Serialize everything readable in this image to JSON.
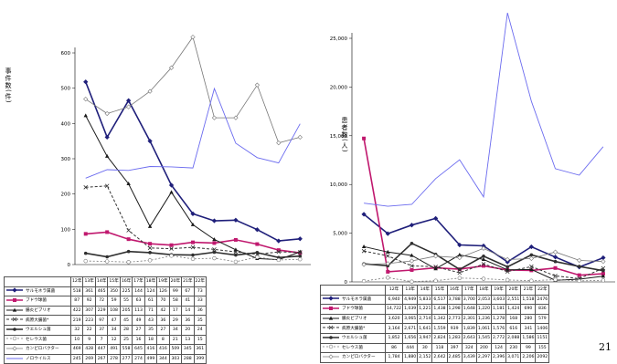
{
  "page": {
    "number": "21"
  },
  "colors": {
    "salmonella": "#1f1f7a",
    "grape": "#c0186e",
    "vibrio": "#1a1a1a",
    "ecoli": "#333333",
    "welchii": "#2f2f2f",
    "cereus": "#777777",
    "campylobacter": "#777777",
    "norovirus": "#6b6bef"
  },
  "chart_data": [
    {
      "type": "line",
      "ylabel": "事件数(件)",
      "ylim": [
        0,
        600
      ],
      "yticks": [
        0,
        100,
        200,
        300,
        400,
        500,
        600
      ],
      "categories": [
        "12年",
        "13年",
        "14年",
        "15年",
        "16年",
        "17年",
        "18年",
        "19年",
        "20年",
        "21年",
        "22年"
      ],
      "series": [
        {
          "name": "サルモネラ属菌",
          "key": "salmonella",
          "values": [
            518,
            361,
            465,
            350,
            225,
            144,
            124,
            126,
            99,
            67,
            73
          ]
        },
        {
          "name": "ブドウ球菌",
          "key": "grape",
          "values": [
            87,
            92,
            72,
            59,
            55,
            63,
            61,
            70,
            58,
            41,
            33
          ]
        },
        {
          "name": "腸炎ビブリオ",
          "key": "vibrio",
          "values": [
            422,
            307,
            229,
            108,
            205,
            113,
            71,
            42,
            17,
            14,
            36
          ]
        },
        {
          "name": "病原大腸菌*",
          "key": "ecoli",
          "values": [
            219,
            223,
            97,
            47,
            45,
            49,
            43,
            36,
            29,
            36,
            35
          ]
        },
        {
          "name": "ウエルシュ菌",
          "key": "welchii",
          "values": [
            32,
            22,
            37,
            34,
            28,
            27,
            35,
            27,
            34,
            20,
            24
          ]
        },
        {
          "name": "セレウス菌",
          "key": "cereus",
          "values": [
            10,
            9,
            7,
            12,
            25,
            16,
            18,
            8,
            21,
            13,
            15
          ]
        },
        {
          "name": "カンピロバクター",
          "key": "campylobacter",
          "values": [
            469,
            428,
            447,
            491,
            558,
            645,
            416,
            416,
            509,
            345,
            361
          ]
        },
        {
          "name": "ノロウイルス",
          "key": "norovirus",
          "values": [
            245,
            269,
            267,
            278,
            277,
            274,
            499,
            344,
            303,
            288,
            399
          ]
        }
      ]
    },
    {
      "type": "line",
      "ylabel": "患者数(人)",
      "ylim": [
        0,
        25000
      ],
      "yticks": [
        0,
        5000,
        10000,
        15000,
        20000,
        25000
      ],
      "ytick_labels": [
        "0",
        "5,000",
        "10,000",
        "15,000",
        "20,000",
        "25,000"
      ],
      "categories": [
        "12年",
        "13年",
        "14年",
        "15年",
        "16年",
        "17年",
        "18年",
        "19年",
        "20年",
        "21年",
        "22年"
      ],
      "series": [
        {
          "name": "サルモネラ属菌",
          "key": "salmonella",
          "values": [
            6940,
            4949,
            5833,
            6517,
            3788,
            3700,
            2053,
            3603,
            2551,
            1518,
            2476
          ],
          "labels": [
            "6,940",
            "4,949",
            "5,833",
            "6,517",
            "3,788",
            "3,700",
            "2,053",
            "3,603",
            "2,551",
            "1,518",
            "2476"
          ]
        },
        {
          "name": "ブドウ球菌",
          "key": "grape",
          "values": [
            14722,
            1039,
            1221,
            1438,
            1298,
            1648,
            1220,
            1181,
            1424,
            690,
            836
          ],
          "labels": [
            "14,722",
            "1,039",
            "1,221",
            "1,438",
            "1,298",
            "1,648",
            "1,220",
            "1,181",
            "1,424",
            "690",
            "836"
          ]
        },
        {
          "name": "腸炎ビブリオ",
          "key": "vibrio",
          "values": [
            3620,
            3065,
            2714,
            1342,
            2773,
            2301,
            1236,
            1278,
            168,
            280,
            579
          ],
          "labels": [
            "3,620",
            "3,065",
            "2,714",
            "1,342",
            "2,773",
            "2,301",
            "1,236",
            "1,278",
            "168",
            "280",
            "579"
          ]
        },
        {
          "name": "病原大腸菌*",
          "key": "ecoli",
          "values": [
            3164,
            2671,
            1641,
            1559,
            939,
            1839,
            1061,
            1576,
            616,
            341,
            1406
          ],
          "labels": [
            "3,164",
            "2,671",
            "1,641",
            "1,559",
            "939",
            "1,839",
            "1,061",
            "1,576",
            "616",
            "341",
            "1406"
          ]
        },
        {
          "name": "ウエルシュ菌",
          "key": "welchii",
          "values": [
            1852,
            1656,
            3947,
            2824,
            1283,
            2643,
            1545,
            2772,
            2088,
            1586,
            1151
          ],
          "labels": [
            "1,852",
            "1,656",
            "3,947",
            "2,824",
            "1,283",
            "2,643",
            "1,545",
            "2,772",
            "2,088",
            "1,586",
            "1151"
          ]
        },
        {
          "name": "セレウス菌",
          "key": "cereus",
          "values": [
            86,
            444,
            30,
            118,
            397,
            324,
            200,
            124,
            230,
            99,
            155
          ],
          "labels": [
            "86",
            "444",
            "30",
            "118",
            "397",
            "324",
            "200",
            "124",
            "230",
            "99",
            "155"
          ]
        },
        {
          "name": "カンピロバクター",
          "key": "campylobacter",
          "values": [
            1784,
            1880,
            2152,
            2642,
            2485,
            3439,
            2297,
            2396,
            3071,
            2206,
            2092
          ],
          "labels": [
            "1,784",
            "1,880",
            "2,152",
            "2,642",
            "2,485",
            "3,439",
            "2,297",
            "2,396",
            "3,071",
            "2,206",
            "2092"
          ]
        },
        {
          "name": "ノロウイルス",
          "key": "norovirus",
          "values": [
            8080,
            7760,
            7961,
            10603,
            12537,
            8727,
            27616,
            18520,
            11618,
            10955,
            13876
          ],
          "labels": []
        }
      ]
    }
  ]
}
